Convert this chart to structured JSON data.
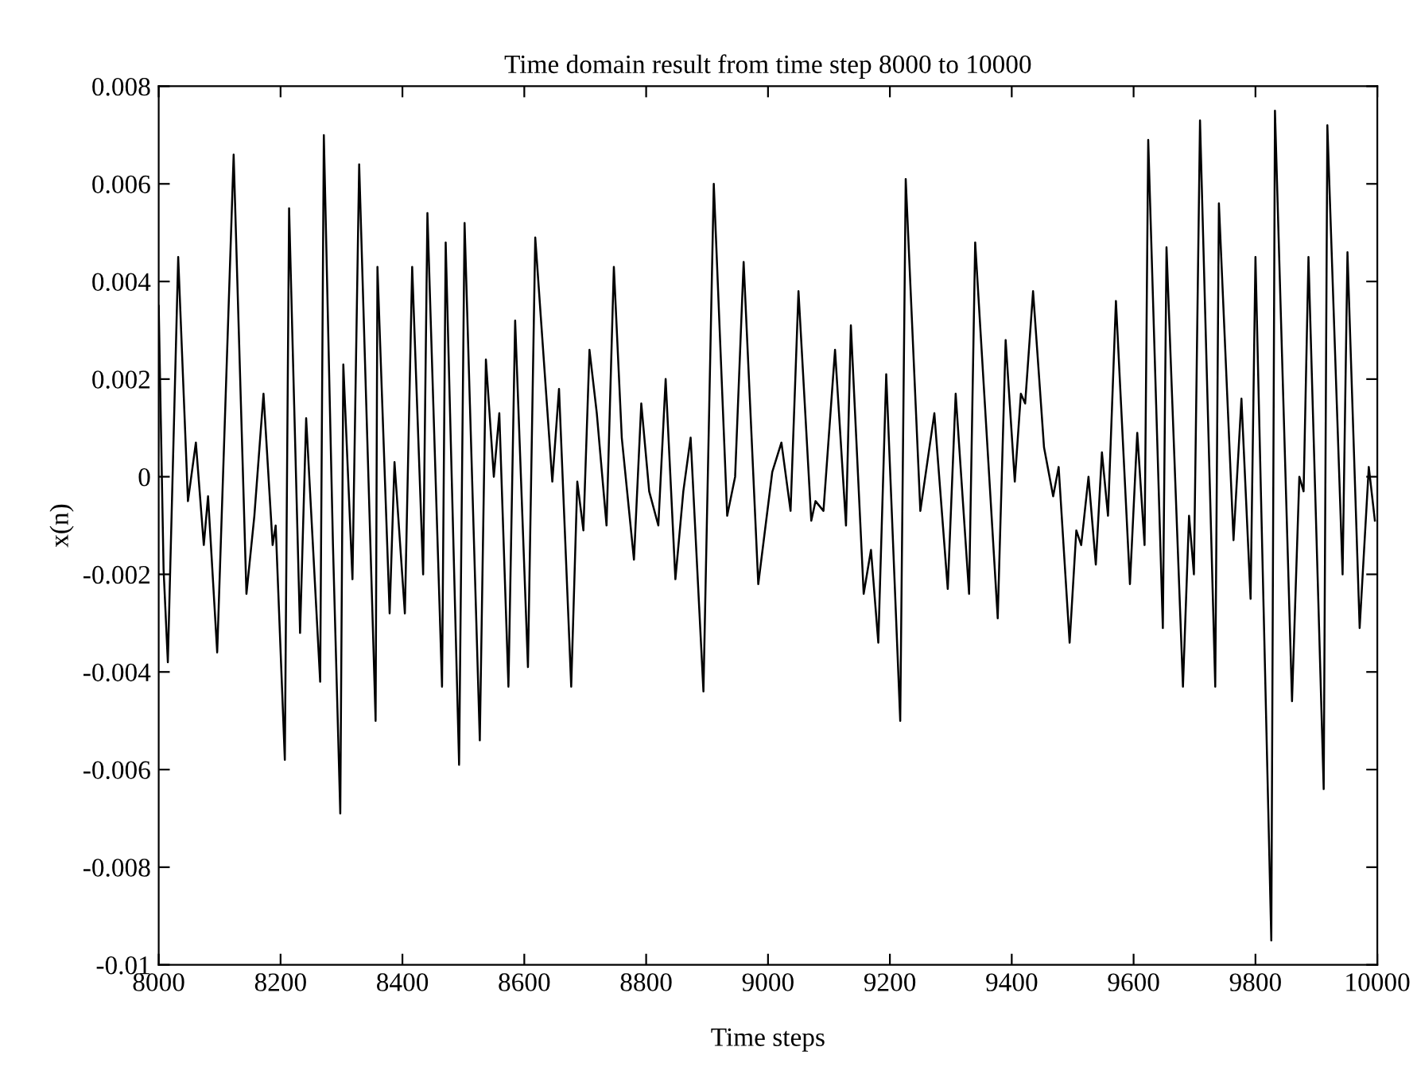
{
  "chart_data": {
    "type": "line",
    "title": "Time domain result from time step 8000 to 10000",
    "xlabel": "Time steps",
    "ylabel": "x(n)",
    "xlim": [
      8000,
      10000
    ],
    "xticks": [
      8000,
      8200,
      8400,
      8600,
      8800,
      9000,
      9200,
      9400,
      9600,
      9800,
      10000
    ],
    "ylim": [
      -0.01,
      0.008
    ],
    "yticks": [
      {
        "value": -0.01,
        "label": "-0.01"
      },
      {
        "value": -0.008,
        "label": "-0.008"
      },
      {
        "value": -0.006,
        "label": "-0.006"
      },
      {
        "value": -0.004,
        "label": "-0.004"
      },
      {
        "value": -0.002,
        "label": "-0.002"
      },
      {
        "value": 0,
        "label": "0"
      },
      {
        "value": 0.002,
        "label": "0.002"
      },
      {
        "value": 0.004,
        "label": "0.004"
      },
      {
        "value": 0.006,
        "label": "0.006"
      },
      {
        "value": 0.008,
        "label": "0.008"
      }
    ],
    "grid": false,
    "legend": false,
    "marker": "none",
    "line_style": "solid",
    "series": [
      {
        "color": "#000000",
        "x": [
          8000,
          8008,
          8015,
          8032,
          8048,
          8061,
          8074,
          8081,
          8096,
          8123,
          8144,
          8157,
          8172,
          8187,
          8192,
          8207,
          8214,
          8232,
          8242,
          8265,
          8271,
          8286,
          8298,
          8303,
          8318,
          8329,
          8356,
          8359,
          8379,
          8387,
          8404,
          8416,
          8434,
          8441,
          8465,
          8471,
          8493,
          8502,
          8527,
          8537,
          8550,
          8559,
          8574,
          8585,
          8606,
          8618,
          8646,
          8657,
          8677,
          8687,
          8697,
          8707,
          8719,
          8735,
          8747,
          8760,
          8780,
          8792,
          8805,
          8820,
          8832,
          8848,
          8861,
          8873,
          8894,
          8911,
          8933,
          8946,
          8960,
          8984,
          9007,
          9022,
          9037,
          9050,
          9071,
          9078,
          9091,
          9110,
          9128,
          9136,
          9157,
          9169,
          9181,
          9194,
          9217,
          9226,
          9250,
          9273,
          9295,
          9308,
          9330,
          9340,
          9377,
          9390,
          9405,
          9415,
          9422,
          9435,
          9453,
          9468,
          9477,
          9495,
          9506,
          9514,
          9526,
          9538,
          9548,
          9558,
          9571,
          9594,
          9606,
          9618,
          9624,
          9648,
          9654,
          9681,
          9691,
          9699,
          9709,
          9734,
          9740,
          9764,
          9777,
          9792,
          9800,
          9826,
          9832,
          9860,
          9872,
          9879,
          9887,
          9912,
          9918,
          9943,
          9951,
          9971,
          9986,
          9996
        ],
        "values": [
          0.0035,
          -0.0019,
          -0.0038,
          0.0045,
          -0.0005,
          0.0007,
          -0.0014,
          -0.0004,
          -0.0036,
          0.0066,
          -0.0024,
          -0.0008,
          0.0017,
          -0.0014,
          -0.001,
          -0.0058,
          0.0055,
          -0.0032,
          0.0012,
          -0.0042,
          0.007,
          -0.0014,
          -0.0069,
          0.0023,
          -0.0021,
          0.0064,
          -0.005,
          0.0043,
          -0.0028,
          0.0003,
          -0.0028,
          0.0043,
          -0.002,
          0.0054,
          -0.0043,
          0.0048,
          -0.0059,
          0.0052,
          -0.0054,
          0.0024,
          0.0,
          0.0013,
          -0.0043,
          0.0032,
          -0.0039,
          0.0049,
          -0.0001,
          0.0018,
          -0.0043,
          -0.0001,
          -0.0011,
          0.0026,
          0.0013,
          -0.001,
          0.0043,
          0.0008,
          -0.0017,
          0.0015,
          -0.0003,
          -0.001,
          0.002,
          -0.0021,
          -0.0003,
          0.0008,
          -0.0044,
          0.006,
          -0.0008,
          0.0,
          0.0044,
          -0.0022,
          0.0001,
          0.0007,
          -0.0007,
          0.0038,
          -0.0009,
          -0.0005,
          -0.0007,
          0.0026,
          -0.001,
          0.0031,
          -0.0024,
          -0.0015,
          -0.0034,
          0.0021,
          -0.005,
          0.0061,
          -0.0007,
          0.0013,
          -0.0023,
          0.0017,
          -0.0024,
          0.0048,
          -0.0029,
          0.0028,
          -0.0001,
          0.0017,
          0.0015,
          0.0038,
          0.0006,
          -0.0004,
          0.0002,
          -0.0034,
          -0.0011,
          -0.0014,
          0.0,
          -0.0018,
          0.0005,
          -0.0008,
          0.0036,
          -0.0022,
          0.0009,
          -0.0014,
          0.0069,
          -0.0031,
          0.0047,
          -0.0043,
          -0.0008,
          -0.002,
          0.0073,
          -0.0043,
          0.0056,
          -0.0013,
          0.0016,
          -0.0025,
          0.0045,
          -0.0095,
          0.0075,
          -0.0046,
          0.0,
          -0.0003,
          0.0045,
          -0.0064,
          0.0072,
          -0.002,
          0.0046,
          -0.0031,
          0.0002,
          -0.0009
        ]
      }
    ]
  }
}
